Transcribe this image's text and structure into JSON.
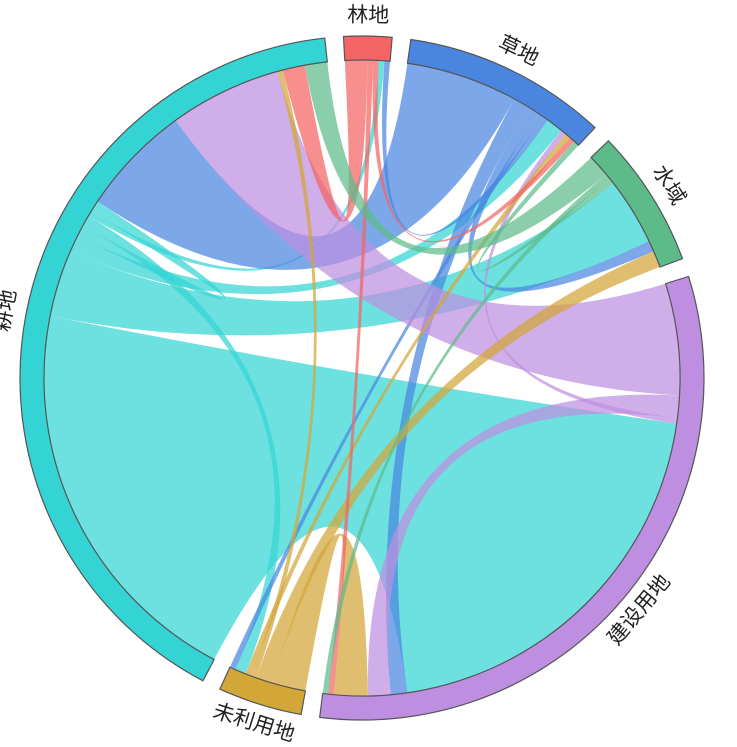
{
  "chart_data": {
    "type": "chord",
    "groups": [
      {
        "id": "linDi",
        "label": "林地",
        "color": "#f46464"
      },
      {
        "id": "caoDi",
        "label": "草地",
        "color": "#4a86e0"
      },
      {
        "id": "shuiYu",
        "label": "水域",
        "color": "#5dbb8a"
      },
      {
        "id": "jianShe",
        "label": "建设用地",
        "color": "#be8fe0"
      },
      {
        "id": "weiLiYong",
        "label": "未利用地",
        "color": "#d2a637"
      },
      {
        "id": "gengDi",
        "label": "耕地",
        "color": "#35d4d4"
      }
    ],
    "flows": [
      {
        "from": "gengDi",
        "to": "jianShe",
        "value": 72
      },
      {
        "from": "gengDi",
        "to": "shuiYu",
        "value": 12
      },
      {
        "from": "gengDi",
        "to": "caoDi",
        "value": 3
      },
      {
        "from": "gengDi",
        "to": "gengDi",
        "value": 2
      },
      {
        "from": "gengDi",
        "to": "weiLiYong",
        "value": 2
      },
      {
        "from": "gengDi",
        "to": "linDi",
        "value": 1
      },
      {
        "from": "caoDi",
        "to": "gengDi",
        "value": 20
      },
      {
        "from": "caoDi",
        "to": "jianShe",
        "value": 3
      },
      {
        "from": "caoDi",
        "to": "shuiYu",
        "value": 2
      },
      {
        "from": "caoDi",
        "to": "weiLiYong",
        "value": 1
      },
      {
        "from": "caoDi",
        "to": "linDi",
        "value": 1
      },
      {
        "from": "jianShe",
        "to": "gengDi",
        "value": 20
      },
      {
        "from": "jianShe",
        "to": "jianShe",
        "value": 4
      },
      {
        "from": "jianShe",
        "to": "caoDi",
        "value": 1
      },
      {
        "from": "weiLiYong",
        "to": "jianShe",
        "value": 6
      },
      {
        "from": "weiLiYong",
        "to": "shuiYu",
        "value": 3
      },
      {
        "from": "weiLiYong",
        "to": "gengDi",
        "value": 1
      },
      {
        "from": "weiLiYong",
        "to": "caoDi",
        "value": 1
      },
      {
        "from": "linDi",
        "to": "gengDi",
        "value": 4
      },
      {
        "from": "linDi",
        "to": "jianShe",
        "value": 1
      },
      {
        "from": "linDi",
        "to": "caoDi",
        "value": 1
      },
      {
        "from": "shuiYu",
        "to": "gengDi",
        "value": 4
      },
      {
        "from": "shuiYu",
        "to": "jianShe",
        "value": 1
      },
      {
        "from": "shuiYu",
        "to": "caoDi",
        "value": 1
      }
    ]
  }
}
